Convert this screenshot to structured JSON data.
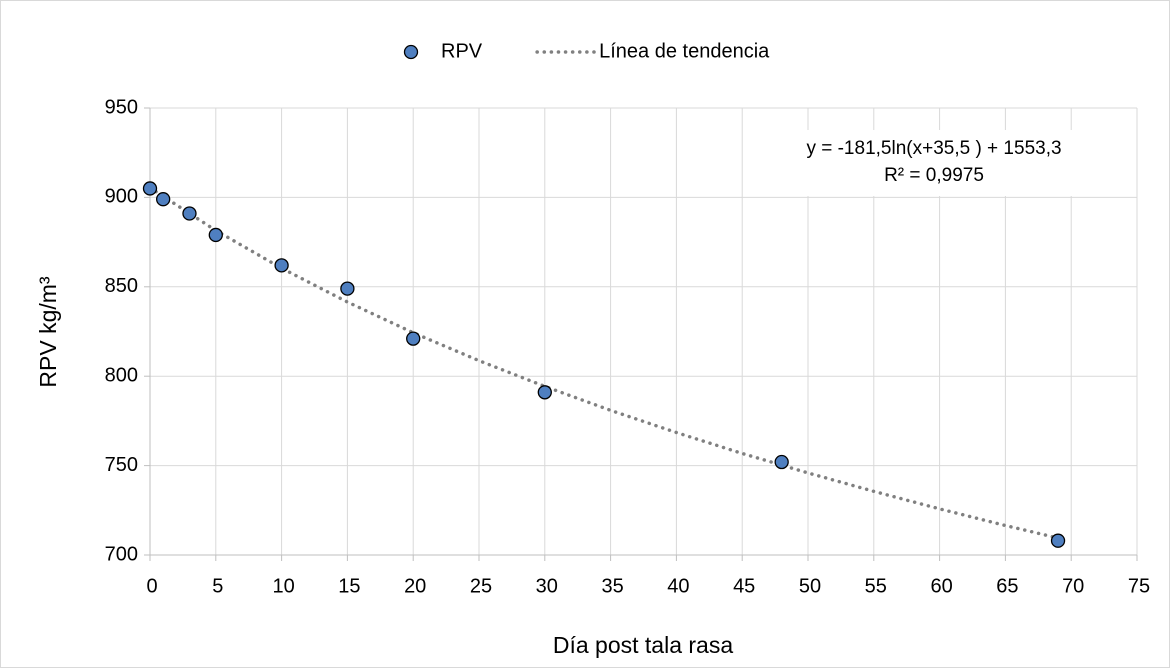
{
  "chart_data": {
    "type": "scatter",
    "xlabel": "Día post tala rasa",
    "ylabel": "RPV kg/m³",
    "annotations": [
      "y = -181,5ln(x+35,5 ) + 1553,3",
      "R² = 0,9975"
    ],
    "xlim": [
      0,
      75
    ],
    "xticks": [
      0,
      5,
      10,
      15,
      20,
      25,
      30,
      35,
      40,
      45,
      50,
      55,
      60,
      65,
      70,
      75
    ],
    "ylim": [
      700,
      950
    ],
    "yticks": [
      700,
      750,
      800,
      850,
      900,
      950
    ],
    "grid": true,
    "legend": "top",
    "series": [
      {
        "name": "RPV",
        "type": "scatter",
        "color": "#4f7fc0",
        "x": [
          0,
          1,
          3,
          5,
          10,
          15,
          20,
          30,
          48,
          69
        ],
        "values": [
          905,
          899,
          891,
          879,
          862,
          849,
          821,
          791,
          752,
          708
        ]
      },
      {
        "name": "Línea de tendencia",
        "type": "line",
        "color": "#808080",
        "x": [
          0,
          5,
          10,
          15,
          20,
          25,
          30,
          35,
          40,
          45,
          50,
          55,
          60,
          65,
          69
        ],
        "values": [
          905.4,
          881.5,
          860.4,
          841.5,
          824.3,
          808.7,
          794.3,
          780.9,
          768.5,
          756.8,
          745.9,
          735.6,
          725.8,
          716.5,
          709.5
        ]
      }
    ]
  }
}
